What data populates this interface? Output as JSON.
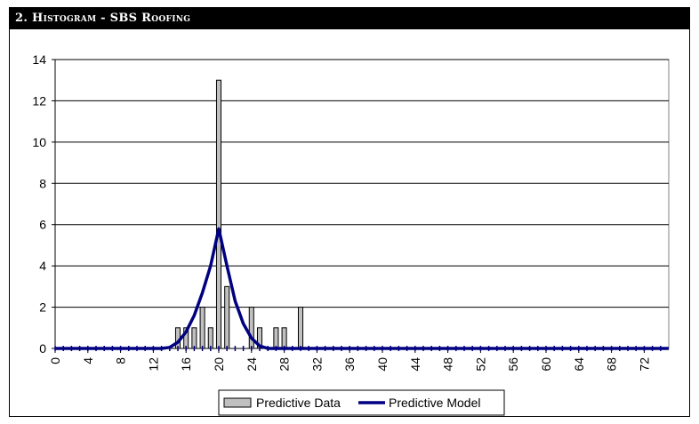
{
  "title": "2. Histogram - SBS Roofing",
  "chart_data": {
    "type": "bar",
    "title": "2. Histogram - SBS Roofing",
    "xlabel": "",
    "ylabel": "",
    "xlim": [
      0,
      75
    ],
    "ylim": [
      0,
      14
    ],
    "x_ticks": [
      0,
      4,
      8,
      12,
      16,
      20,
      24,
      28,
      32,
      36,
      40,
      44,
      48,
      52,
      56,
      60,
      64,
      68,
      72
    ],
    "y_ticks": [
      0,
      2,
      4,
      6,
      8,
      10,
      12,
      14
    ],
    "grid": true,
    "legend_position": "bottom",
    "series": [
      {
        "name": "Predictive Data",
        "type": "bar",
        "color": "#c0c0c0",
        "x": [
          15,
          16,
          17,
          18,
          19,
          20,
          21,
          24,
          25,
          27,
          28,
          30
        ],
        "values": [
          1,
          1,
          1,
          2,
          1,
          13,
          3,
          2,
          1,
          1,
          1,
          2
        ]
      },
      {
        "name": "Predictive Model",
        "type": "line",
        "color": "#000080",
        "x": [
          0,
          13,
          14,
          15,
          16,
          17,
          18,
          19,
          20,
          21,
          22,
          23,
          24,
          25,
          26,
          27,
          75
        ],
        "values": [
          0,
          0,
          0.05,
          0.3,
          0.8,
          1.6,
          2.7,
          4.0,
          5.8,
          4.0,
          2.3,
          1.2,
          0.5,
          0.12,
          0,
          0,
          0
        ]
      }
    ]
  }
}
